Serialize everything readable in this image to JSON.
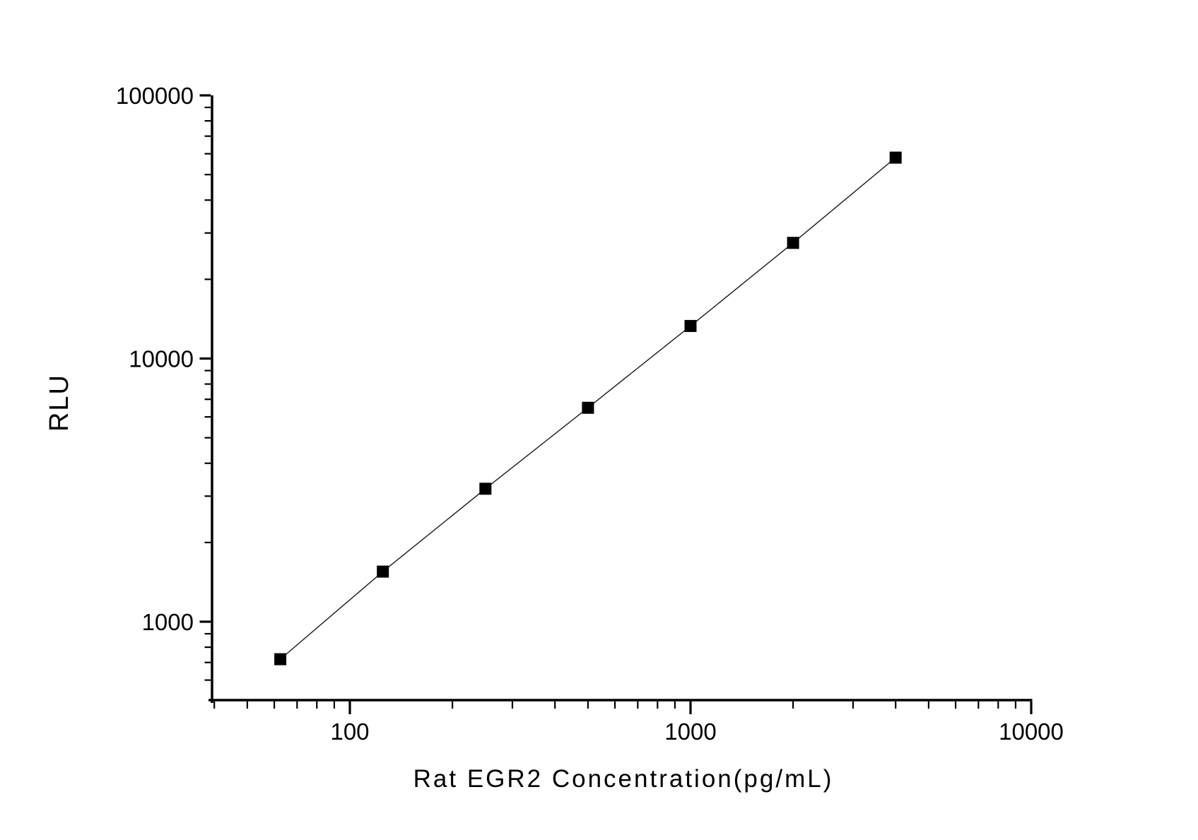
{
  "chart_data": {
    "type": "scatter",
    "subtype": "standard-curve-line-with-square-markers",
    "title": "",
    "xlabel": "Rat EGR2 Concentration(pg/mL)",
    "ylabel": "RLU",
    "x_scale": "log",
    "y_scale": "log",
    "series": [
      {
        "name": "standard-curve",
        "marker": "filled-square",
        "points": [
          {
            "x": 62.5,
            "y": 720
          },
          {
            "x": 125,
            "y": 1550
          },
          {
            "x": 250,
            "y": 3200
          },
          {
            "x": 500,
            "y": 6500
          },
          {
            "x": 1000,
            "y": 13300
          },
          {
            "x": 2000,
            "y": 27500
          },
          {
            "x": 4000,
            "y": 58000
          }
        ]
      }
    ],
    "x_axis": {
      "range": [
        39,
        10050
      ],
      "major_ticks": [
        100,
        1000,
        10000
      ],
      "major_tick_labels": [
        "100",
        "1000",
        "10000"
      ],
      "minor_ticks": [
        40,
        50,
        60,
        70,
        80,
        90,
        200,
        300,
        400,
        500,
        600,
        700,
        800,
        900,
        2000,
        3000,
        4000,
        5000,
        6000,
        7000,
        8000,
        9000
      ]
    },
    "y_axis": {
      "range": [
        505,
        100000
      ],
      "major_ticks": [
        1000,
        10000,
        100000
      ],
      "major_tick_labels": [
        "1000",
        "10000",
        "100000"
      ],
      "minor_ticks": [
        600,
        700,
        800,
        900,
        2000,
        3000,
        4000,
        5000,
        6000,
        7000,
        8000,
        9000,
        20000,
        30000,
        40000,
        50000,
        60000,
        70000,
        80000,
        90000
      ]
    },
    "grid": false,
    "legend": "none",
    "colors": {
      "background": "#ffffff",
      "axis": "#000000",
      "text": "#000000",
      "line": "#1a1a1a",
      "marker": "#000000"
    }
  }
}
